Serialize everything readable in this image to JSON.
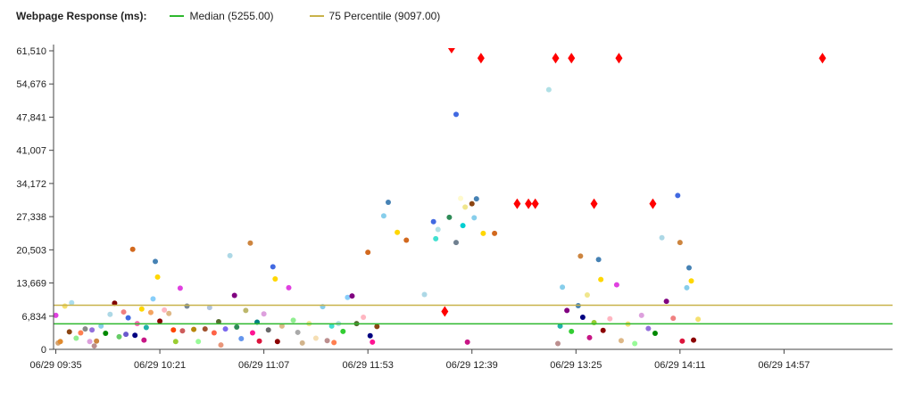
{
  "header": {
    "title": "Webpage Response (ms):",
    "legend": [
      {
        "label": "Median (5255.00)",
        "color": "#2db82d"
      },
      {
        "label": "75 Percentile (9097.00)",
        "color": "#c8b24a"
      }
    ]
  },
  "chart_data": {
    "type": "scatter",
    "title": "Webpage Response (ms):",
    "xlabel": "",
    "ylabel": "",
    "ylim": [
      0,
      61510
    ],
    "xlim": [
      "06/29 09:34",
      "06/29 15:45"
    ],
    "y_tick_labels": [
      "0",
      "6,834",
      "13,669",
      "20,503",
      "27,338",
      "34,172",
      "41,007",
      "47,841",
      "54,676",
      "61,510"
    ],
    "y_tick_values": [
      0,
      6834,
      13669,
      20503,
      27338,
      34172,
      41007,
      47841,
      54676,
      61510
    ],
    "x_tick_labels": [
      "06/29 09:35",
      "06/29 10:21",
      "06/29 11:07",
      "06/29 11:53",
      "06/29 12:39",
      "06/29 13:25",
      "06/29 14:11",
      "06/29 14:57"
    ],
    "reference_lines": [
      {
        "label": "Median (5255.00)",
        "y": 5255,
        "color": "#2db82d"
      },
      {
        "label": "75 Percentile (9097.00)",
        "y": 9097,
        "color": "#c8b24a"
      }
    ],
    "grid": false,
    "legend_position": "top",
    "series": [
      {
        "marker": "diamond",
        "color": "#ff0000",
        "points": [
          {
            "x": "06/29 12:27",
            "y": 7800
          },
          {
            "x": "06/29 12:30",
            "y": 61510
          },
          {
            "x": "06/29 12:43",
            "y": 60000
          },
          {
            "x": "06/29 12:59",
            "y": 30000
          },
          {
            "x": "06/29 13:04",
            "y": 30000
          },
          {
            "x": "06/29 13:07",
            "y": 30000
          },
          {
            "x": "06/29 13:16",
            "y": 60000
          },
          {
            "x": "06/29 13:23",
            "y": 60000
          },
          {
            "x": "06/29 13:33",
            "y": 30000
          },
          {
            "x": "06/29 13:44",
            "y": 60000
          },
          {
            "x": "06/29 13:59",
            "y": 30000
          },
          {
            "x": "06/29 15:14",
            "y": 60000
          }
        ]
      },
      {
        "marker": "circle",
        "color": "multi",
        "points": [
          {
            "x": "06/29 09:35",
            "y": 7000,
            "c": "#e040e0"
          },
          {
            "x": "06/29 09:36",
            "y": 1300,
            "c": "#d4a574"
          },
          {
            "x": "06/29 09:37",
            "y": 1600,
            "c": "#e08a2e"
          },
          {
            "x": "06/29 09:39",
            "y": 8900,
            "c": "#f5e070"
          },
          {
            "x": "06/29 09:41",
            "y": 3600,
            "c": "#8b4513"
          },
          {
            "x": "06/29 09:42",
            "y": 9600,
            "c": "#aaddee"
          },
          {
            "x": "06/29 09:44",
            "y": 2300,
            "c": "#90ee90"
          },
          {
            "x": "06/29 09:46",
            "y": 3400,
            "c": "#ff7f50"
          },
          {
            "x": "06/29 09:48",
            "y": 4200,
            "c": "#888888"
          },
          {
            "x": "06/29 09:50",
            "y": 1600,
            "c": "#dda0dd"
          },
          {
            "x": "06/29 09:51",
            "y": 4000,
            "c": "#9370db"
          },
          {
            "x": "06/29 09:52",
            "y": 700,
            "c": "#bc8f8f"
          },
          {
            "x": "06/29 09:53",
            "y": 1700,
            "c": "#cd853f"
          },
          {
            "x": "06/29 09:55",
            "y": 4800,
            "c": "#87ceeb"
          },
          {
            "x": "06/29 09:57",
            "y": 3300,
            "c": "#008800"
          },
          {
            "x": "06/29 09:59",
            "y": 7200,
            "c": "#add8e6"
          },
          {
            "x": "06/29 10:01",
            "y": 9500,
            "c": "#800000"
          },
          {
            "x": "06/29 10:03",
            "y": 2600,
            "c": "#66cc66"
          },
          {
            "x": "06/29 10:05",
            "y": 7700,
            "c": "#f08080"
          },
          {
            "x": "06/29 10:06",
            "y": 3100,
            "c": "#6a5acd"
          },
          {
            "x": "06/29 10:07",
            "y": 6500,
            "c": "#4169e1"
          },
          {
            "x": "06/29 10:09",
            "y": 20600,
            "c": "#d2691e"
          },
          {
            "x": "06/29 10:10",
            "y": 2900,
            "c": "#000080"
          },
          {
            "x": "06/29 10:11",
            "y": 5300,
            "c": "#ff69b4"
          },
          {
            "x": "06/29 10:13",
            "y": 8300,
            "c": "#ffd700"
          },
          {
            "x": "06/29 10:14",
            "y": 1900,
            "c": "#c71585"
          },
          {
            "x": "06/29 10:15",
            "y": 4500,
            "c": "#20b2aa"
          },
          {
            "x": "06/29 10:17",
            "y": 7600,
            "c": "#f4a460"
          },
          {
            "x": "06/29 10:18",
            "y": 10400,
            "c": "#87cefa"
          },
          {
            "x": "06/29 10:19",
            "y": 18100,
            "c": "#4682b4"
          },
          {
            "x": "06/29 10:20",
            "y": 14900,
            "c": "#ffd700"
          },
          {
            "x": "06/29 10:21",
            "y": 5800,
            "c": "#8b0000"
          },
          {
            "x": "06/29 10:23",
            "y": 8100,
            "c": "#ffb6c1"
          },
          {
            "x": "06/29 10:25",
            "y": 7400,
            "c": "#deb887"
          },
          {
            "x": "06/29 10:27",
            "y": 4000,
            "c": "#ff4500"
          },
          {
            "x": "06/29 10:28",
            "y": 1600,
            "c": "#9acd32"
          },
          {
            "x": "06/29 10:30",
            "y": 12600,
            "c": "#e040e0"
          },
          {
            "x": "06/29 10:31",
            "y": 3800,
            "c": "#cd5c5c"
          },
          {
            "x": "06/29 10:33",
            "y": 8900,
            "c": "#778899"
          },
          {
            "x": "06/29 10:36",
            "y": 4100,
            "c": "#b8860b"
          },
          {
            "x": "06/29 10:38",
            "y": 1600,
            "c": "#98fb98"
          },
          {
            "x": "06/29 10:41",
            "y": 4200,
            "c": "#a0522d"
          },
          {
            "x": "06/29 10:43",
            "y": 8600,
            "c": "#b0c4de"
          },
          {
            "x": "06/29 10:45",
            "y": 3400,
            "c": "#ff6347"
          },
          {
            "x": "06/29 10:47",
            "y": 5700,
            "c": "#556b2f"
          },
          {
            "x": "06/29 10:48",
            "y": 900,
            "c": "#e9967a"
          },
          {
            "x": "06/29 10:50",
            "y": 4200,
            "c": "#7b68ee"
          },
          {
            "x": "06/29 10:52",
            "y": 19300,
            "c": "#add8e6"
          },
          {
            "x": "06/29 10:54",
            "y": 11100,
            "c": "#800080"
          },
          {
            "x": "06/29 10:55",
            "y": 4600,
            "c": "#2e8b57"
          },
          {
            "x": "06/29 10:57",
            "y": 2200,
            "c": "#6495ed"
          },
          {
            "x": "06/29 10:59",
            "y": 8000,
            "c": "#bdb76b"
          },
          {
            "x": "06/29 11:01",
            "y": 21900,
            "c": "#cd853f"
          },
          {
            "x": "06/29 11:02",
            "y": 3400,
            "c": "#ff1493"
          },
          {
            "x": "06/29 11:04",
            "y": 5600,
            "c": "#008080"
          },
          {
            "x": "06/29 11:05",
            "y": 1700,
            "c": "#dc143c"
          },
          {
            "x": "06/29 11:07",
            "y": 7300,
            "c": "#dda0dd"
          },
          {
            "x": "06/29 11:09",
            "y": 4000,
            "c": "#696969"
          },
          {
            "x": "06/29 11:11",
            "y": 17000,
            "c": "#4169e1"
          },
          {
            "x": "06/29 11:12",
            "y": 14500,
            "c": "#ffd700"
          },
          {
            "x": "06/29 11:13",
            "y": 1600,
            "c": "#8b0000"
          },
          {
            "x": "06/29 11:15",
            "y": 4800,
            "c": "#deb887"
          },
          {
            "x": "06/29 11:18",
            "y": 12700,
            "c": "#e040e0"
          },
          {
            "x": "06/29 11:20",
            "y": 6000,
            "c": "#90ee90"
          },
          {
            "x": "06/29 11:22",
            "y": 3500,
            "c": "#a9a9a9"
          },
          {
            "x": "06/29 11:24",
            "y": 1300,
            "c": "#d2b48c"
          },
          {
            "x": "06/29 11:27",
            "y": 5300,
            "c": "#f0e68c"
          },
          {
            "x": "06/29 11:30",
            "y": 2300,
            "c": "#f5deb3"
          },
          {
            "x": "06/29 11:33",
            "y": 8800,
            "c": "#87ceeb"
          },
          {
            "x": "06/29 11:35",
            "y": 1800,
            "c": "#bc8f8f"
          },
          {
            "x": "06/29 11:37",
            "y": 4800,
            "c": "#40e0d0"
          },
          {
            "x": "06/29 11:38",
            "y": 1400,
            "c": "#ff7f50"
          },
          {
            "x": "06/29 11:40",
            "y": 5300,
            "c": "#b0e0e6"
          },
          {
            "x": "06/29 11:42",
            "y": 3700,
            "c": "#32cd32"
          },
          {
            "x": "06/29 11:44",
            "y": 10700,
            "c": "#87cefa"
          },
          {
            "x": "06/29 11:46",
            "y": 11000,
            "c": "#800080"
          },
          {
            "x": "06/29 11:48",
            "y": 5300,
            "c": "#556b2f"
          },
          {
            "x": "06/29 11:51",
            "y": 6600,
            "c": "#ffb6c1"
          },
          {
            "x": "06/29 11:53",
            "y": 20000,
            "c": "#d2691e"
          },
          {
            "x": "06/29 11:54",
            "y": 2800,
            "c": "#000080"
          },
          {
            "x": "06/29 11:55",
            "y": 1500,
            "c": "#ff1493"
          },
          {
            "x": "06/29 11:57",
            "y": 4700,
            "c": "#8b4513"
          },
          {
            "x": "06/29 12:00",
            "y": 27500,
            "c": "#87ceeb"
          },
          {
            "x": "06/29 12:02",
            "y": 30300,
            "c": "#4682b4"
          },
          {
            "x": "06/29 12:06",
            "y": 24100,
            "c": "#ffd700"
          },
          {
            "x": "06/29 12:10",
            "y": 22500,
            "c": "#d2691e"
          },
          {
            "x": "06/29 12:18",
            "y": 11300,
            "c": "#add8e6"
          },
          {
            "x": "06/29 12:22",
            "y": 26300,
            "c": "#4169e1"
          },
          {
            "x": "06/29 12:23",
            "y": 22800,
            "c": "#40e0d0"
          },
          {
            "x": "06/29 12:24",
            "y": 24700,
            "c": "#b0e0e6"
          },
          {
            "x": "06/29 12:29",
            "y": 27200,
            "c": "#2e8b57"
          },
          {
            "x": "06/29 12:32",
            "y": 48400,
            "c": "#4169e1"
          },
          {
            "x": "06/29 12:32",
            "y": 22000,
            "c": "#708090"
          },
          {
            "x": "06/29 12:34",
            "y": 31100,
            "c": "#fffacd"
          },
          {
            "x": "06/29 12:35",
            "y": 25500,
            "c": "#00ced1"
          },
          {
            "x": "06/29 12:36",
            "y": 29300,
            "c": "#f0e68c"
          },
          {
            "x": "06/29 12:37",
            "y": 1500,
            "c": "#c71585"
          },
          {
            "x": "06/29 12:40",
            "y": 27100,
            "c": "#87ceeb"
          },
          {
            "x": "06/29 12:41",
            "y": 31000,
            "c": "#4682b4"
          },
          {
            "x": "06/29 12:39",
            "y": 30000,
            "c": "#8b4513"
          },
          {
            "x": "06/29 12:44",
            "y": 23900,
            "c": "#ffd700"
          },
          {
            "x": "06/29 12:49",
            "y": 23900,
            "c": "#d2691e"
          },
          {
            "x": "06/29 13:13",
            "y": 53500,
            "c": "#b0e0e6"
          },
          {
            "x": "06/29 13:17",
            "y": 1200,
            "c": "#bc8f8f"
          },
          {
            "x": "06/29 13:18",
            "y": 4800,
            "c": "#20b2aa"
          },
          {
            "x": "06/29 13:19",
            "y": 12800,
            "c": "#87ceeb"
          },
          {
            "x": "06/29 13:21",
            "y": 8000,
            "c": "#800080"
          },
          {
            "x": "06/29 13:23",
            "y": 3700,
            "c": "#32cd32"
          },
          {
            "x": "06/29 13:26",
            "y": 9000,
            "c": "#4682b4"
          },
          {
            "x": "06/29 13:27",
            "y": 19200,
            "c": "#cd853f"
          },
          {
            "x": "06/29 13:28",
            "y": 6600,
            "c": "#000080"
          },
          {
            "x": "06/29 13:30",
            "y": 11200,
            "c": "#f0e68c"
          },
          {
            "x": "06/29 13:31",
            "y": 2400,
            "c": "#c71585"
          },
          {
            "x": "06/29 13:33",
            "y": 5500,
            "c": "#9acd32"
          },
          {
            "x": "06/29 13:35",
            "y": 18500,
            "c": "#4682b4"
          },
          {
            "x": "06/29 13:36",
            "y": 14400,
            "c": "#ffd700"
          },
          {
            "x": "06/29 13:37",
            "y": 3900,
            "c": "#8b0000"
          },
          {
            "x": "06/29 13:40",
            "y": 6300,
            "c": "#ffb6c1"
          },
          {
            "x": "06/29 13:43",
            "y": 13300,
            "c": "#e040e0"
          },
          {
            "x": "06/29 13:45",
            "y": 1800,
            "c": "#deb887"
          },
          {
            "x": "06/29 13:48",
            "y": 5200,
            "c": "#f5e070"
          },
          {
            "x": "06/29 13:51",
            "y": 1200,
            "c": "#98fb98"
          },
          {
            "x": "06/29 13:54",
            "y": 7000,
            "c": "#dda0dd"
          },
          {
            "x": "06/29 13:57",
            "y": 4300,
            "c": "#9370db"
          },
          {
            "x": "06/29 14:00",
            "y": 3300,
            "c": "#008800"
          },
          {
            "x": "06/29 14:03",
            "y": 23000,
            "c": "#add8e6"
          },
          {
            "x": "06/29 14:05",
            "y": 9900,
            "c": "#800080"
          },
          {
            "x": "06/29 14:08",
            "y": 6400,
            "c": "#f08080"
          },
          {
            "x": "06/29 14:10",
            "y": 31700,
            "c": "#4169e1"
          },
          {
            "x": "06/29 14:11",
            "y": 22000,
            "c": "#cd853f"
          },
          {
            "x": "06/29 14:12",
            "y": 1700,
            "c": "#dc143c"
          },
          {
            "x": "06/29 14:14",
            "y": 12700,
            "c": "#87ceeb"
          },
          {
            "x": "06/29 14:15",
            "y": 16800,
            "c": "#4682b4"
          },
          {
            "x": "06/29 14:16",
            "y": 14100,
            "c": "#ffd700"
          },
          {
            "x": "06/29 14:17",
            "y": 1900,
            "c": "#8b0000"
          },
          {
            "x": "06/29 14:19",
            "y": 6200,
            "c": "#f5e070"
          }
        ]
      }
    ]
  }
}
